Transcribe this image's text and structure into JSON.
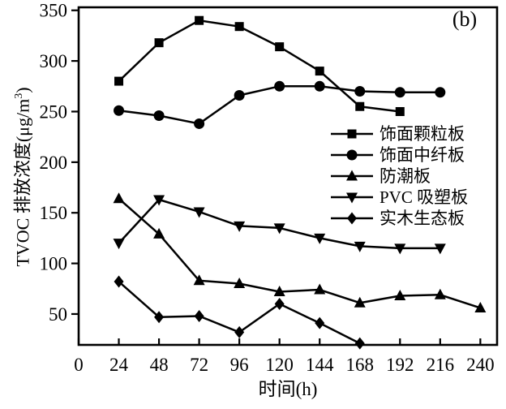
{
  "figure_label": "(b)",
  "chart_data": {
    "type": "line",
    "title": "",
    "xlabel": "时间(h)",
    "ylabel": "TVOC 排放浓度(μg/m³)",
    "ylabel_parts": {
      "prefix": "TVOC 排放浓度(μg/m",
      "sup": "3",
      "suffix": ")"
    },
    "x_ticks": [
      0,
      24,
      48,
      72,
      96,
      120,
      144,
      168,
      192,
      216,
      240
    ],
    "y_ticks": [
      50,
      100,
      150,
      200,
      250,
      300,
      350
    ],
    "xlim": [
      0,
      250
    ],
    "ylim": [
      19.5,
      353
    ],
    "grid": false,
    "legend_position": "center-right",
    "line_color": "#000000",
    "background_color": "#ffffff",
    "series": [
      {
        "name": "饰面颗粒板",
        "marker": "square",
        "x": [
          24,
          48,
          72,
          96,
          120,
          144,
          168,
          192
        ],
        "y": [
          280,
          318,
          340,
          334,
          314,
          290,
          255,
          250
        ]
      },
      {
        "name": "饰面中纤板",
        "marker": "circle",
        "x": [
          24,
          48,
          72,
          96,
          120,
          144,
          168,
          192,
          216
        ],
        "y": [
          251,
          246,
          238,
          266,
          275,
          275,
          270,
          269,
          269
        ]
      },
      {
        "name": "防潮板",
        "marker": "triangle-up",
        "x": [
          24,
          48,
          72,
          96,
          120,
          144,
          168,
          192,
          216,
          240
        ],
        "y": [
          164,
          129,
          83,
          80,
          72,
          74,
          61,
          68,
          69,
          56
        ]
      },
      {
        "name": "PVC 吸塑板",
        "marker": "triangle-down",
        "x": [
          24,
          48,
          72,
          96,
          120,
          144,
          168,
          192,
          216
        ],
        "y": [
          120,
          163,
          151,
          137,
          135,
          125,
          117,
          115,
          115
        ]
      },
      {
        "name": "实木生态板",
        "marker": "diamond",
        "x": [
          24,
          48,
          72,
          96,
          120,
          144,
          168
        ],
        "y": [
          82,
          47,
          48,
          32,
          60,
          41,
          21
        ]
      }
    ]
  }
}
